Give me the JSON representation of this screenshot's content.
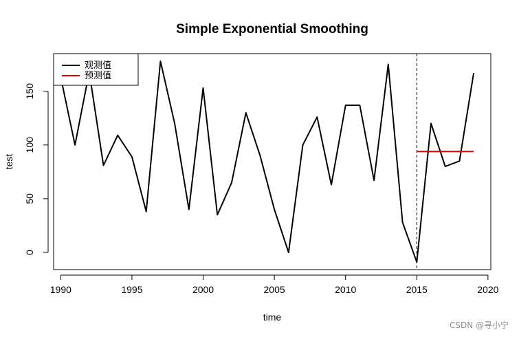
{
  "chart_data": {
    "type": "line",
    "title": "Simple Exponential Smoothing",
    "xlabel": "time",
    "ylabel": "test",
    "xlim": [
      1989.5,
      2020.2
    ],
    "ylim": [
      -16,
      185
    ],
    "x_ticks": [
      1990,
      1995,
      2000,
      2005,
      2010,
      2015,
      2020
    ],
    "y_ticks": [
      0,
      50,
      100,
      150
    ],
    "series": [
      {
        "name": "观测值",
        "color": "#000000",
        "x": [
          1990,
          1991,
          1992,
          1993,
          1994,
          1995,
          1996,
          1997,
          1998,
          1999,
          2000,
          2001,
          2002,
          2003,
          2004,
          2005,
          2006,
          2007,
          2008,
          2009,
          2010,
          2011,
          2012,
          2013,
          2014,
          2015,
          2016,
          2017,
          2018,
          2019
        ],
        "values": [
          163,
          100,
          168,
          81,
          109,
          89,
          38,
          178,
          120,
          40,
          153,
          35,
          65,
          130,
          90,
          40,
          0,
          100,
          126,
          63,
          137,
          137,
          67,
          175,
          28,
          -9,
          120,
          80,
          85,
          167
        ]
      },
      {
        "name": "预测值",
        "color": "#e00000",
        "x": [
          2015,
          2019
        ],
        "values": [
          94,
          94
        ]
      }
    ],
    "forecast_origin": 2015,
    "legend_position": "top-left"
  },
  "watermark": "CSDN @寻小宁"
}
